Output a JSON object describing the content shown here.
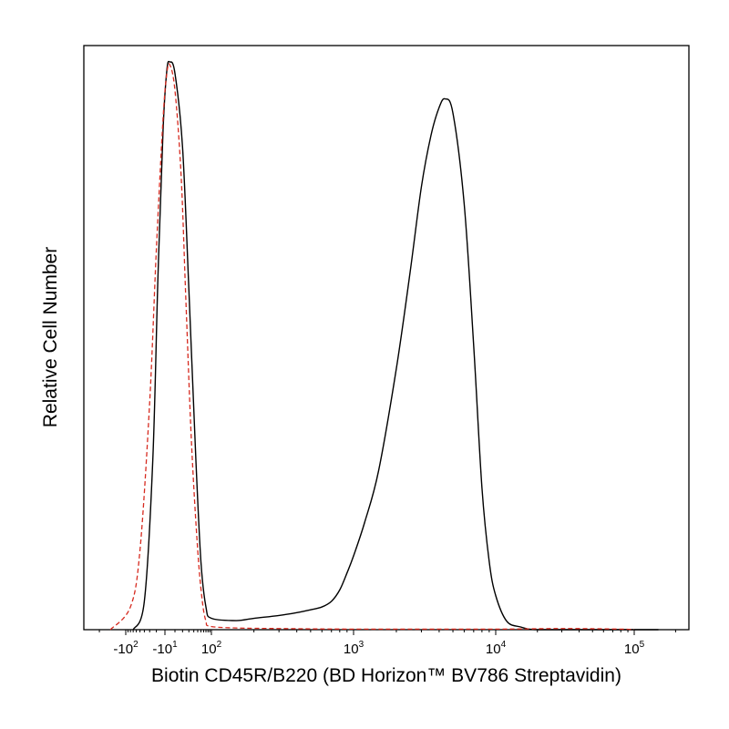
{
  "chart_data": {
    "type": "line",
    "title": "",
    "xlabel": "Biotin CD45R/B220 (BD Horizon™ BV786 Streptavidin)",
    "ylabel": "Relative Cell Number",
    "x_scale": "biexponential",
    "xlim": [
      -300,
      250000
    ],
    "ylim": [
      0,
      1.0
    ],
    "grid": false,
    "legend": "none",
    "x_ticks": [
      {
        "value": -100,
        "base": "-10",
        "exp": "2"
      },
      {
        "value": -10,
        "base": "-10",
        "exp": "1"
      },
      {
        "value": 100,
        "base": "10",
        "exp": "2"
      },
      {
        "value": 1000,
        "base": "10",
        "exp": "3"
      },
      {
        "value": 10000,
        "base": "10",
        "exp": "4"
      },
      {
        "value": 100000,
        "base": "10",
        "exp": "5"
      }
    ],
    "series": [
      {
        "style": "solid",
        "color": "#000000",
        "points": [
          [
            -70,
            0.0
          ],
          [
            -40,
            0.05
          ],
          [
            -25,
            0.3
          ],
          [
            -18,
            0.62
          ],
          [
            -12,
            0.88
          ],
          [
            -8,
            0.985
          ],
          [
            -5,
            1.0
          ],
          [
            0,
            0.98
          ],
          [
            10,
            0.85
          ],
          [
            20,
            0.6
          ],
          [
            35,
            0.3
          ],
          [
            50,
            0.12
          ],
          [
            70,
            0.04
          ],
          [
            100,
            0.02
          ],
          [
            150,
            0.016
          ],
          [
            200,
            0.02
          ],
          [
            300,
            0.025
          ],
          [
            400,
            0.03
          ],
          [
            500,
            0.035
          ],
          [
            600,
            0.04
          ],
          [
            700,
            0.05
          ],
          [
            800,
            0.07
          ],
          [
            900,
            0.1
          ],
          [
            1000,
            0.13
          ],
          [
            1200,
            0.19
          ],
          [
            1500,
            0.28
          ],
          [
            2000,
            0.46
          ],
          [
            2500,
            0.63
          ],
          [
            3000,
            0.78
          ],
          [
            3500,
            0.87
          ],
          [
            4000,
            0.92
          ],
          [
            4400,
            0.935
          ],
          [
            5000,
            0.91
          ],
          [
            6000,
            0.75
          ],
          [
            7000,
            0.5
          ],
          [
            8000,
            0.25
          ],
          [
            9000,
            0.12
          ],
          [
            10000,
            0.06
          ],
          [
            12000,
            0.015
          ],
          [
            15000,
            0.005
          ],
          [
            20000,
            0.0
          ],
          [
            50000,
            0.0
          ],
          [
            100000,
            0.0
          ],
          [
            150000,
            0.0
          ]
        ]
      },
      {
        "style": "dashed",
        "color": "#d62a1f",
        "points": [
          [
            -150,
            0.0
          ],
          [
            -80,
            0.04
          ],
          [
            -50,
            0.14
          ],
          [
            -30,
            0.4
          ],
          [
            -20,
            0.67
          ],
          [
            -12,
            0.9
          ],
          [
            -8,
            0.98
          ],
          [
            -5,
            0.995
          ],
          [
            0,
            0.95
          ],
          [
            8,
            0.8
          ],
          [
            15,
            0.58
          ],
          [
            25,
            0.33
          ],
          [
            40,
            0.14
          ],
          [
            55,
            0.05
          ],
          [
            70,
            0.015
          ],
          [
            90,
            0.006
          ],
          [
            150,
            0.003
          ],
          [
            300,
            0.002
          ],
          [
            1000,
            0.001
          ],
          [
            10000,
            0.001
          ],
          [
            30000,
            0.002
          ],
          [
            80000,
            0.001
          ],
          [
            100000,
            0.0
          ]
        ]
      }
    ]
  }
}
